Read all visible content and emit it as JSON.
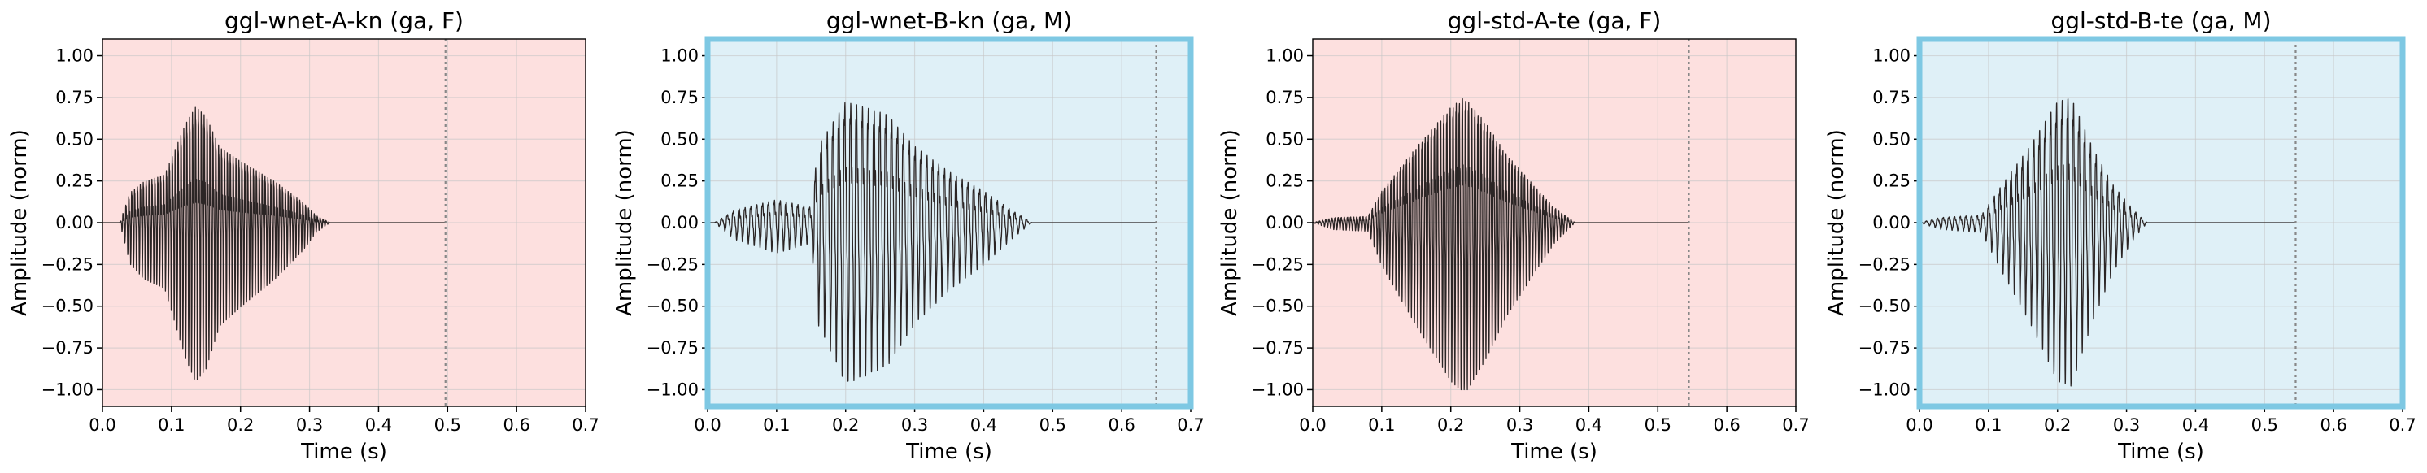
{
  "chart_data": [
    {
      "type": "line",
      "title": "ggl-wnet-A-kn (ga, F)",
      "xlabel": "Time (s)",
      "ylabel": "Amplitude (norm)",
      "xlim": [
        0.0,
        0.7
      ],
      "ylim": [
        -1.1,
        1.1
      ],
      "xticks": [
        "0.0",
        "0.1",
        "0.2",
        "0.3",
        "0.4",
        "0.5",
        "0.6",
        "0.7"
      ],
      "yticks": [
        "1.00",
        "0.75",
        "0.50",
        "0.25",
        "0.00",
        "−0.25",
        "−0.50",
        "−0.75",
        "−1.00"
      ],
      "grid": true,
      "background": "#fde0df",
      "highlight_border": false,
      "end_marker_x": 0.497,
      "waveform": {
        "start": 0.025,
        "end": 0.33,
        "envelope": [
          [
            0.025,
            0.0
          ],
          [
            0.04,
            0.22
          ],
          [
            0.06,
            0.3
          ],
          [
            0.09,
            0.35
          ],
          [
            0.12,
            0.72
          ],
          [
            0.135,
            0.85
          ],
          [
            0.15,
            0.78
          ],
          [
            0.17,
            0.55
          ],
          [
            0.2,
            0.45
          ],
          [
            0.25,
            0.3
          ],
          [
            0.29,
            0.15
          ],
          [
            0.31,
            0.05
          ],
          [
            0.33,
            0.0
          ]
        ],
        "voiced_from": 0.025,
        "cycle_period": 0.0042,
        "asymmetry": 1.1
      }
    },
    {
      "type": "line",
      "title": "ggl-wnet-B-kn (ga, M)",
      "xlabel": "Time (s)",
      "ylabel": "Amplitude (norm)",
      "xlim": [
        0.0,
        0.7
      ],
      "ylim": [
        -1.1,
        1.1
      ],
      "xticks": [
        "0.0",
        "0.1",
        "0.2",
        "0.3",
        "0.4",
        "0.5",
        "0.6",
        "0.7"
      ],
      "yticks": [
        "1.00",
        "0.75",
        "0.50",
        "0.25",
        "0.00",
        "−0.25",
        "−0.50",
        "−0.75",
        "−1.00"
      ],
      "grid": true,
      "background": "#dff0f7",
      "highlight_border": true,
      "border_color": "#7ec8e3",
      "end_marker_x": 0.65,
      "waveform": {
        "start": 0.01,
        "end": 0.47,
        "envelope": [
          [
            0.01,
            0.0
          ],
          [
            0.04,
            0.1
          ],
          [
            0.1,
            0.18
          ],
          [
            0.15,
            0.12
          ],
          [
            0.16,
            0.6
          ],
          [
            0.2,
            0.95
          ],
          [
            0.22,
            0.92
          ],
          [
            0.26,
            0.85
          ],
          [
            0.3,
            0.6
          ],
          [
            0.35,
            0.4
          ],
          [
            0.4,
            0.25
          ],
          [
            0.44,
            0.1
          ],
          [
            0.47,
            0.0
          ]
        ],
        "voiced_from": 0.01,
        "cycle_period": 0.0085,
        "asymmetry": 0.65
      }
    },
    {
      "type": "line",
      "title": "ggl-std-A-te (ga, F)",
      "xlabel": "Time (s)",
      "ylabel": "Amplitude (norm)",
      "xlim": [
        0.0,
        0.7
      ],
      "ylim": [
        -1.1,
        1.1
      ],
      "xticks": [
        "0.0",
        "0.1",
        "0.2",
        "0.3",
        "0.4",
        "0.5",
        "0.6",
        "0.7"
      ],
      "yticks": [
        "1.00",
        "0.75",
        "0.50",
        "0.25",
        "0.00",
        "−0.25",
        "−0.50",
        "−0.75",
        "−1.00"
      ],
      "grid": true,
      "background": "#fde0df",
      "highlight_border": false,
      "end_marker_x": 0.545,
      "waveform": {
        "start": 0.0,
        "end": 0.38,
        "envelope": [
          [
            0.0,
            0.0
          ],
          [
            0.03,
            0.04
          ],
          [
            0.08,
            0.05
          ],
          [
            0.1,
            0.25
          ],
          [
            0.15,
            0.6
          ],
          [
            0.2,
            0.92
          ],
          [
            0.22,
            1.0
          ],
          [
            0.25,
            0.8
          ],
          [
            0.28,
            0.55
          ],
          [
            0.32,
            0.3
          ],
          [
            0.35,
            0.12
          ],
          [
            0.38,
            0.0
          ]
        ],
        "voiced_from": 0.0,
        "cycle_period": 0.0045,
        "asymmetry": 0.75
      }
    },
    {
      "type": "line",
      "title": "ggl-std-B-te (ga, M)",
      "xlabel": "Time (s)",
      "ylabel": "Amplitude (norm)",
      "xlim": [
        0.0,
        0.7
      ],
      "ylim": [
        -1.1,
        1.1
      ],
      "xticks": [
        "0.0",
        "0.1",
        "0.2",
        "0.3",
        "0.4",
        "0.5",
        "0.6",
        "0.7"
      ],
      "yticks": [
        "1.00",
        "0.75",
        "0.50",
        "0.25",
        "0.00",
        "−0.25",
        "−0.50",
        "−0.75",
        "−1.00"
      ],
      "grid": true,
      "background": "#dff0f7",
      "highlight_border": true,
      "border_color": "#7ec8e3",
      "end_marker_x": 0.545,
      "waveform": {
        "start": 0.0,
        "end": 0.33,
        "envelope": [
          [
            0.0,
            0.0
          ],
          [
            0.03,
            0.04
          ],
          [
            0.09,
            0.06
          ],
          [
            0.12,
            0.3
          ],
          [
            0.16,
            0.6
          ],
          [
            0.2,
            0.95
          ],
          [
            0.22,
            0.98
          ],
          [
            0.25,
            0.6
          ],
          [
            0.28,
            0.3
          ],
          [
            0.31,
            0.1
          ],
          [
            0.33,
            0.0
          ]
        ],
        "voiced_from": 0.0,
        "cycle_period": 0.0082,
        "asymmetry": 0.6
      }
    }
  ],
  "colors": {
    "waveform": "#2b2525",
    "marker": "#888888",
    "grid": "#c8c8c8",
    "axis": "#000000"
  }
}
